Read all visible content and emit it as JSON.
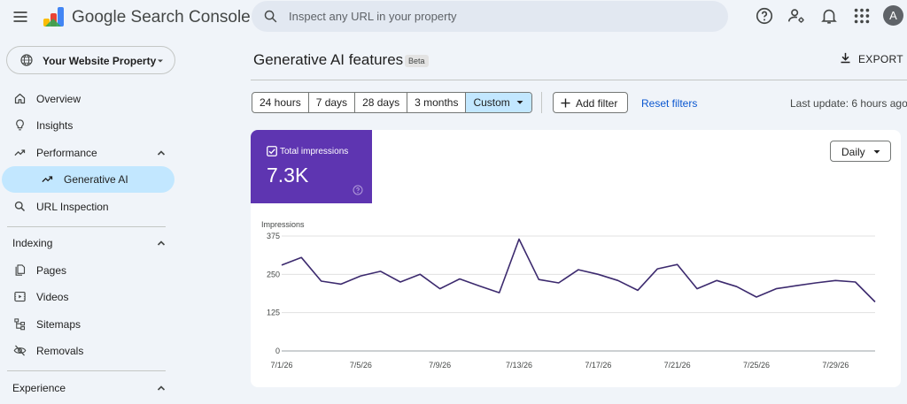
{
  "app": {
    "product_name": "Google Search Console",
    "search_placeholder": "Inspect any URL in your property",
    "avatar_letter": "A",
    "icons": [
      "menu-icon",
      "search-console-logo",
      "search-icon",
      "help-icon",
      "manage-users-icon",
      "notifications-icon",
      "apps-grid-icon"
    ]
  },
  "sidebar": {
    "property_label": "Your Website Property",
    "items": [
      {
        "label": "Overview",
        "icon": "home-icon"
      },
      {
        "label": "Insights",
        "icon": "lightbulb-icon"
      },
      {
        "label": "Performance",
        "icon": "trending-up-icon",
        "expanded": true
      },
      {
        "label": "Generative AI",
        "icon": "trending-up-icon",
        "active": true
      },
      {
        "label": "URL Inspection",
        "icon": "search-icon"
      }
    ],
    "sections": [
      {
        "label": "Indexing",
        "expanded": true,
        "items": [
          {
            "label": "Pages",
            "icon": "pages-icon"
          },
          {
            "label": "Videos",
            "icon": "video-icon"
          },
          {
            "label": "Sitemaps",
            "icon": "sitemap-icon"
          },
          {
            "label": "Removals",
            "icon": "eye-off-icon"
          }
        ]
      },
      {
        "label": "Experience",
        "expanded": true,
        "items": []
      }
    ]
  },
  "main": {
    "title": "Generative AI features",
    "badge": "Beta",
    "export_label": "EXPORT",
    "date_ranges": [
      "24 hours",
      "7 days",
      "28 days",
      "3 months",
      "Custom"
    ],
    "selected_range": "Custom",
    "add_filter_label": "Add filter",
    "reset_filters_label": "Reset filters",
    "last_update": "Last update: 6 hours ago",
    "metric": {
      "label": "Total impressions",
      "value": "7.3K",
      "checked": true
    },
    "granularity": "Daily",
    "colors": {
      "accent": "#5e35b1",
      "line": "#3c2a6e",
      "selected_chip": "#c2e7ff",
      "link": "#0b57d0"
    }
  },
  "chart_data": {
    "type": "line",
    "ylabel": "Impressions",
    "ylim": [
      0,
      375
    ],
    "yticks": [
      0,
      125,
      250,
      375
    ],
    "grid": true,
    "x": [
      "7/1/26",
      "7/2/26",
      "7/3/26",
      "7/4/26",
      "7/5/26",
      "7/6/26",
      "7/7/26",
      "7/8/26",
      "7/9/26",
      "7/10/26",
      "7/11/26",
      "7/12/26",
      "7/13/26",
      "7/14/26",
      "7/15/26",
      "7/16/26",
      "7/17/26",
      "7/18/26",
      "7/19/26",
      "7/20/26",
      "7/21/26",
      "7/22/26",
      "7/23/26",
      "7/24/26",
      "7/25/26",
      "7/26/26",
      "7/27/26",
      "7/28/26",
      "7/29/26",
      "7/30/26",
      "7/31/26"
    ],
    "xtick_labels": [
      "7/1/26",
      "7/5/26",
      "7/9/26",
      "7/13/26",
      "7/17/26",
      "7/21/26",
      "7/25/26",
      "7/29/26"
    ],
    "series": [
      {
        "values": [
          280,
          305,
          228,
          218,
          245,
          260,
          225,
          250,
          203,
          235,
          212,
          190,
          365,
          233,
          222,
          265,
          250,
          230,
          198,
          268,
          282,
          203,
          230,
          210,
          176,
          203,
          213,
          222,
          230,
          225,
          160
        ]
      }
    ]
  }
}
